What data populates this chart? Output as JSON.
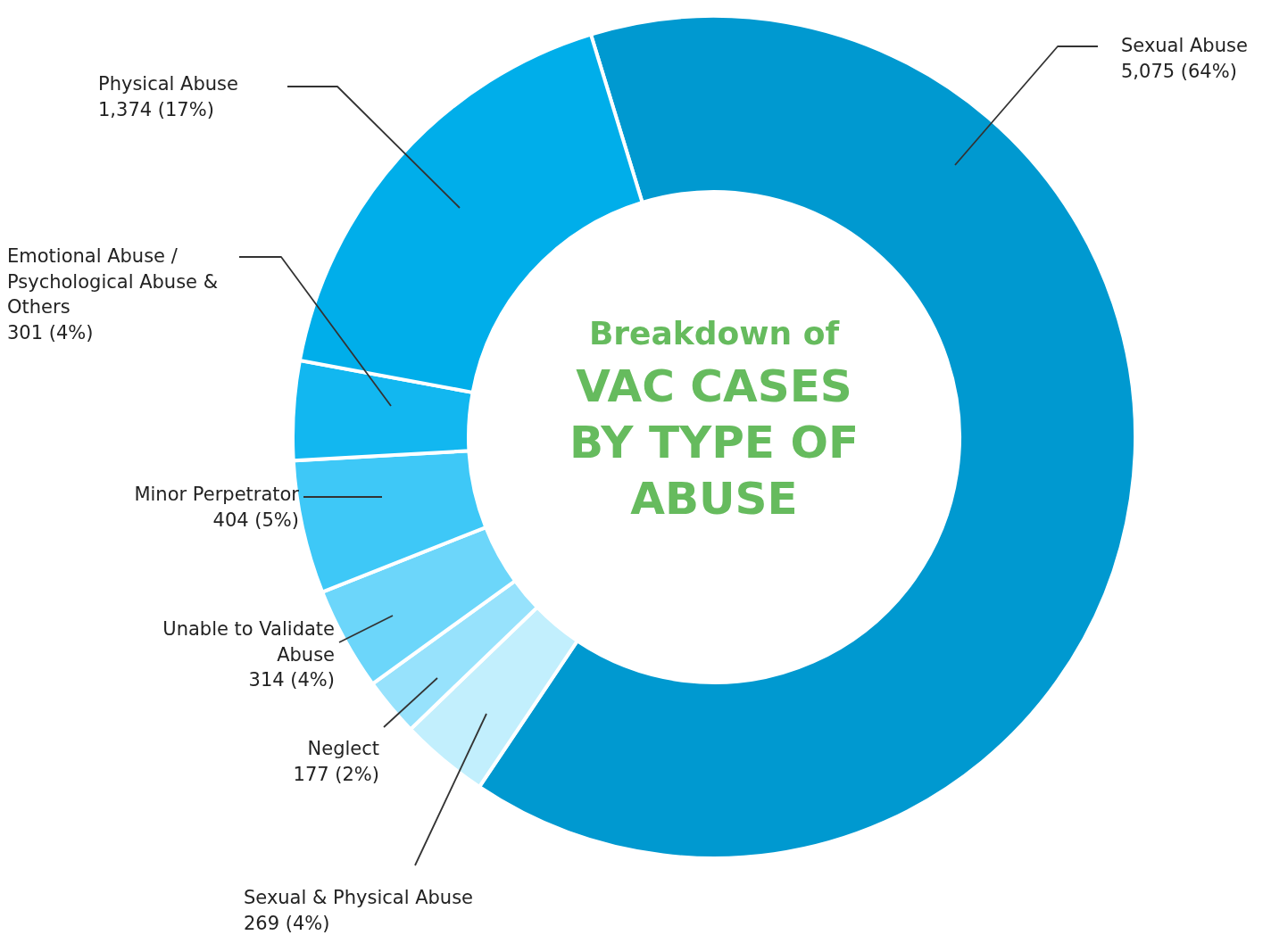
{
  "chart_data": {
    "type": "donut",
    "subtitle": "Breakdown of",
    "title": "VAC CASES BY TYPE OF ABUSE",
    "categories": [
      "Sexual Abuse",
      "Sexual & Physical Abuse",
      "Neglect",
      "Unable to Validate Abuse",
      "Minor Perpetrator",
      "Emotional Abuse / Psychological Abuse & Others",
      "Physical Abuse"
    ],
    "values": [
      5075,
      269,
      177,
      314,
      404,
      301,
      1374
    ],
    "value_labels": [
      "5,075 (64%)",
      "269 (4%)",
      "177 (2%)",
      "314 (4%)",
      "404 (5%)",
      "301 (4%)",
      "1,374 (17%)"
    ],
    "colors": [
      "#0099d0",
      "#c2effd",
      "#97e2fc",
      "#6cd6fa",
      "#3ec8f7",
      "#12b7f0",
      "#00aeea"
    ]
  }
}
